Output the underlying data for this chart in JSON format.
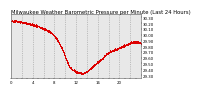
{
  "title": "Milwaukee Weather Barometric Pressure per Minute (Last 24 Hours)",
  "background_color": "#ffffff",
  "plot_background": "#e8e8e8",
  "line_color": "#dd0000",
  "grid_color": "#999999",
  "title_color": "#000000",
  "title_fontsize": 3.8,
  "tick_fontsize": 2.8,
  "ylim_min": 29.25,
  "ylim_max": 30.35,
  "yticks": [
    29.3,
    29.4,
    29.5,
    29.6,
    29.7,
    29.8,
    29.9,
    30.0,
    30.1,
    30.2,
    30.3
  ],
  "num_points": 1440,
  "pressure_profile": [
    30.22,
    30.22,
    30.22,
    30.21,
    30.2,
    30.19,
    30.18,
    30.17,
    30.16,
    30.15,
    30.13,
    30.11,
    30.09,
    30.07,
    30.05,
    30.02,
    29.98,
    29.92,
    29.85,
    29.76,
    29.65,
    29.52,
    29.42,
    29.38,
    29.35,
    29.33,
    29.32,
    29.31,
    29.33,
    29.36,
    29.4,
    29.44,
    29.48,
    29.52,
    29.56,
    29.6,
    29.65,
    29.68,
    29.7,
    29.72,
    29.74,
    29.76,
    29.78,
    29.8,
    29.82,
    29.84,
    29.85,
    29.86,
    29.85,
    29.84
  ],
  "num_vgrid": 12,
  "vgrid_interval_minutes": 120
}
